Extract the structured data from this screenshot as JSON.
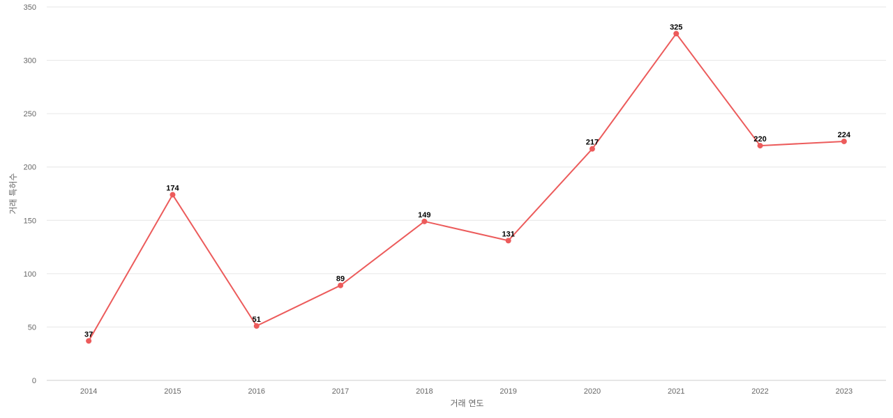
{
  "chart_data": {
    "type": "line",
    "title": "",
    "xlabel": "거래 연도",
    "ylabel": "거래 특허수",
    "categories": [
      "2014",
      "2015",
      "2016",
      "2017",
      "2018",
      "2019",
      "2020",
      "2021",
      "2022",
      "2023"
    ],
    "series": [
      {
        "values": [
          37,
          174,
          51,
          89,
          149,
          131,
          217,
          325,
          220,
          224
        ],
        "color": "#ec5b5b"
      }
    ],
    "ylim": [
      0,
      350
    ],
    "yticks": [
      0,
      50,
      100,
      150,
      200,
      250,
      300,
      350
    ],
    "grid": true,
    "data_labels": true,
    "legend": "none"
  }
}
